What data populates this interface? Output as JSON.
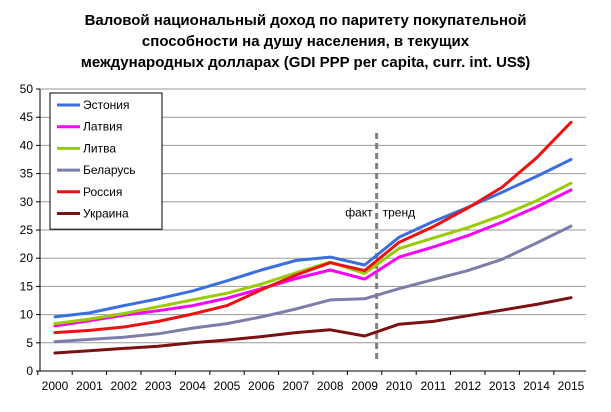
{
  "chart_data": {
    "type": "line",
    "title_lines": [
      "Валовой национальный доход по паритету покупательной",
      "способности на душу населения, в текущих",
      "международных долларах (GDI PPP per capita, curr. int. US$)"
    ],
    "x": [
      2000,
      2001,
      2002,
      2003,
      2004,
      2005,
      2006,
      2007,
      2008,
      2009,
      2010,
      2011,
      2012,
      2013,
      2014,
      2015
    ],
    "ylim": [
      0,
      50
    ],
    "yticks": [
      0,
      5,
      10,
      15,
      20,
      25,
      30,
      35,
      40,
      45,
      50
    ],
    "grid": true,
    "legend_position": "top-left",
    "series": [
      {
        "name": "Эстония",
        "color": "#3B6FE0",
        "values": [
          9.6,
          10.3,
          11.6,
          12.8,
          14.2,
          16.0,
          17.9,
          19.6,
          20.2,
          18.8,
          23.7,
          26.5,
          29.0,
          31.7,
          34.5,
          37.5
        ]
      },
      {
        "name": "Латвия",
        "color": "#FF00FF",
        "values": [
          8.0,
          8.9,
          9.9,
          10.7,
          11.6,
          12.9,
          14.6,
          16.4,
          17.9,
          16.3,
          20.2,
          22.0,
          24.0,
          26.4,
          29.1,
          32.1
        ]
      },
      {
        "name": "Литва",
        "color": "#99CC00",
        "values": [
          8.4,
          9.2,
          10.2,
          11.4,
          12.6,
          13.8,
          15.4,
          17.4,
          19.3,
          17.3,
          21.7,
          23.6,
          25.4,
          27.6,
          30.2,
          33.3
        ]
      },
      {
        "name": "Беларусь",
        "color": "#7C7DA8",
        "values": [
          5.2,
          5.6,
          6.0,
          6.6,
          7.6,
          8.4,
          9.6,
          11.0,
          12.6,
          12.8,
          14.6,
          16.2,
          17.8,
          19.8,
          22.7,
          25.7
        ]
      },
      {
        "name": "Россия",
        "color": "#EE1111",
        "values": [
          6.8,
          7.2,
          7.8,
          8.8,
          10.1,
          11.6,
          14.4,
          17.0,
          19.2,
          17.8,
          22.8,
          25.6,
          28.9,
          32.6,
          37.8,
          44.1
        ]
      },
      {
        "name": "Украина",
        "color": "#7A1212",
        "values": [
          3.2,
          3.6,
          4.0,
          4.4,
          5.0,
          5.5,
          6.1,
          6.8,
          7.3,
          6.2,
          8.3,
          8.8,
          9.8,
          10.8,
          11.8,
          13.0
        ]
      }
    ],
    "annotations": {
      "marker_x": 2009.35,
      "left_label": "факт",
      "right_label": "тренд"
    }
  }
}
